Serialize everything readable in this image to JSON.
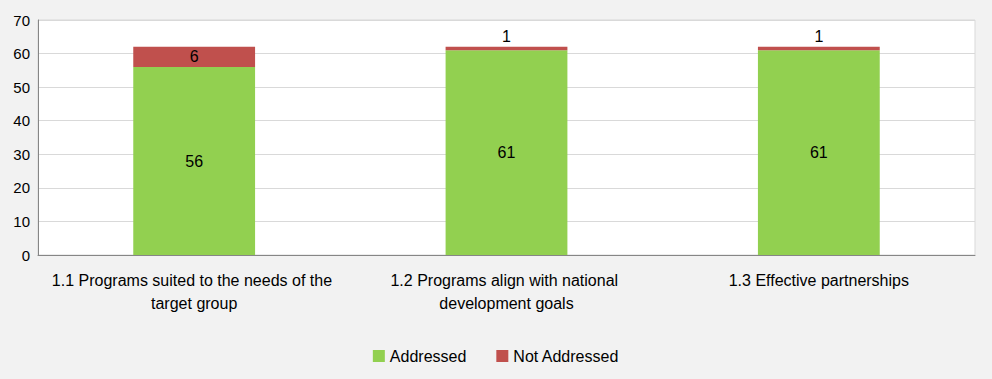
{
  "chart_data": {
    "type": "bar",
    "stacked": true,
    "categories": [
      "1.1 Programs suited to the needs of the target group",
      "1.2 Programs align with national development goals",
      "1.3 Effective partnerships"
    ],
    "series": [
      {
        "name": "Addressed",
        "color": "#92d050",
        "values": [
          56,
          61,
          61
        ]
      },
      {
        "name": "Not Addressed",
        "color": "#c0504d",
        "values": [
          6,
          1,
          1
        ]
      }
    ],
    "ylim": [
      0,
      70
    ],
    "yticks": [
      0,
      10,
      20,
      30,
      40,
      50,
      60,
      70
    ],
    "grid": true,
    "legend": "bottom",
    "data_labels": true
  }
}
